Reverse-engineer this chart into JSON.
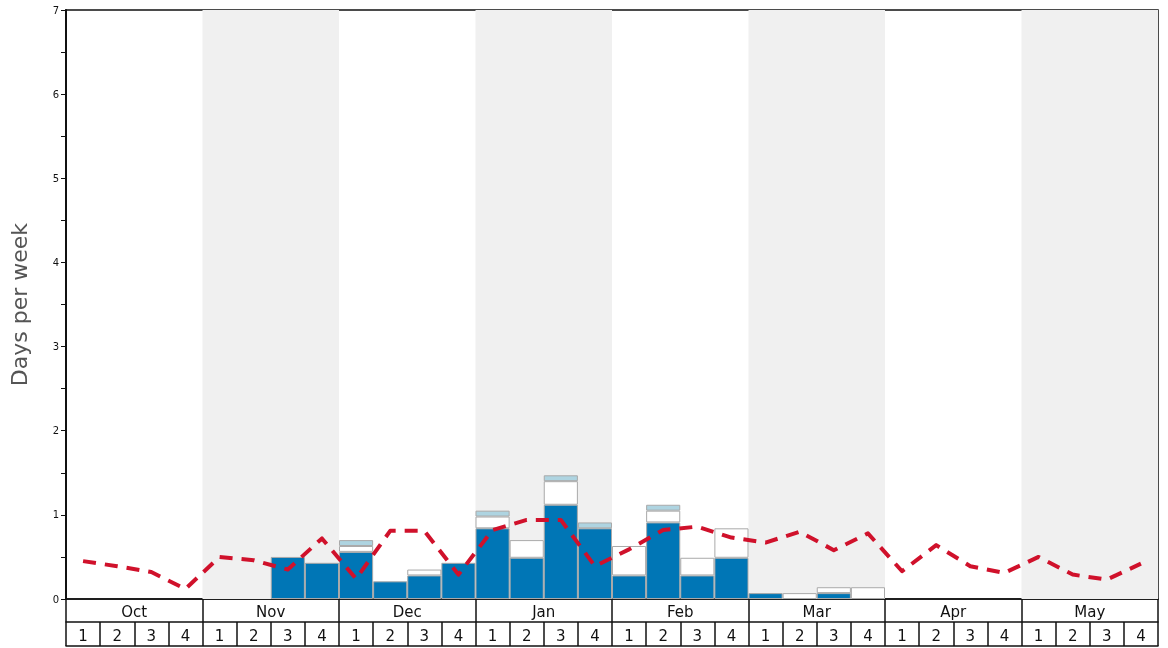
{
  "chart_data": {
    "type": "bar",
    "stacked": true,
    "ylabel": "Days per week",
    "categories": [
      "1",
      "2",
      "3",
      "4",
      "1",
      "2",
      "3",
      "4",
      "1",
      "2",
      "3",
      "4",
      "1",
      "2",
      "3",
      "4",
      "1",
      "2",
      "3",
      "4",
      "1",
      "2",
      "3",
      "4",
      "1",
      "2",
      "3",
      "4",
      "1",
      "2",
      "3",
      "4"
    ],
    "annotations": [
      "Oct",
      "Nov",
      "Dec",
      "Jan",
      "Feb",
      "Mar",
      "Apr",
      "May"
    ],
    "ylim": [
      0,
      7
    ],
    "yticks": [
      0,
      {
        "value": 0.5,
        "label": null
      },
      1,
      {
        "value": 1.5,
        "label": null
      },
      2,
      {
        "value": 2.5,
        "label": null
      },
      3,
      {
        "value": 3.5,
        "label": null
      },
      4,
      {
        "value": 4.5,
        "label": null
      },
      5,
      {
        "value": 5.5,
        "label": null
      },
      6,
      {
        "value": 6.5,
        "label": null
      },
      7
    ],
    "series": [
      {
        "color": "#0076b6",
        "values": [
          null,
          null,
          null,
          null,
          null,
          null,
          0.5,
          0.43,
          0.56,
          0.21,
          0.28,
          0.43,
          0.84,
          0.49,
          1.12,
          0.84,
          0.28,
          0.91,
          0.28,
          0.49,
          0.07,
          null,
          0.07,
          null,
          null,
          null,
          null,
          null,
          null,
          null,
          null,
          null
        ]
      },
      {
        "color": "#ffffff",
        "values": [
          null,
          null,
          null,
          null,
          null,
          null,
          null,
          null,
          0.07,
          null,
          0.07,
          null,
          0.14,
          0.21,
          0.28,
          null,
          0.35,
          0.14,
          0.21,
          0.35,
          null,
          0.07,
          0.07,
          0.14,
          null,
          null,
          null,
          null,
          null,
          null,
          null,
          null
        ]
      },
      {
        "color": "#aed4e1",
        "values": [
          null,
          null,
          null,
          null,
          null,
          null,
          null,
          null,
          0.07,
          null,
          null,
          null,
          0.07,
          null,
          0.07,
          0.07,
          null,
          0.07,
          null,
          null,
          null,
          null,
          null,
          null,
          null,
          null,
          null,
          null,
          null,
          null,
          null,
          null
        ]
      },
      {
        "type": "line",
        "color": "#d0112b",
        "line_style": "dashed",
        "values": [
          0.45,
          0.39,
          0.32,
          0.12,
          0.5,
          0.46,
          0.35,
          0.72,
          0.24,
          0.81,
          0.81,
          0.29,
          0.82,
          0.94,
          0.94,
          0.39,
          0.59,
          0.82,
          0.86,
          0.73,
          0.67,
          0.8,
          0.58,
          0.78,
          0.33,
          0.64,
          0.39,
          0.31,
          0.5,
          0.29,
          0.23,
          0.42
        ]
      }
    ]
  }
}
